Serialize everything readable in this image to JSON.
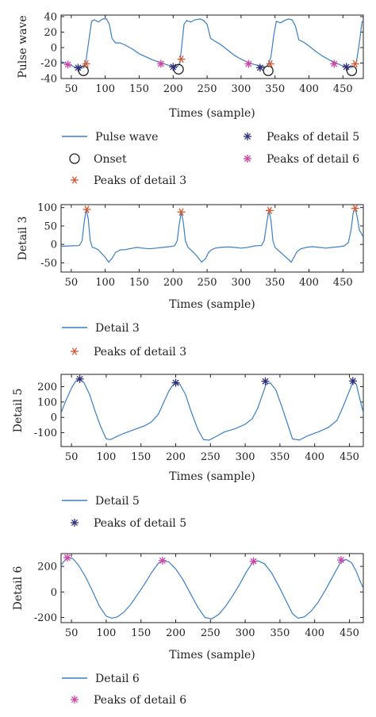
{
  "chart_data": [
    {
      "type": "line",
      "ylabel": "Pulse wave",
      "xlabel": "Times (sample)",
      "xlim": [
        35,
        480
      ],
      "ylim": [
        -40,
        42
      ],
      "xticks": [
        50,
        100,
        150,
        200,
        250,
        300,
        350,
        400,
        450
      ],
      "yticks": [
        -40,
        -20,
        0,
        20,
        40
      ],
      "series": [
        {
          "name": "Pulse wave",
          "kind": "line",
          "color": "#3b7fc4",
          "x": [
            35,
            47,
            55,
            62,
            68,
            72,
            76,
            80,
            84,
            90,
            96,
            102,
            106,
            110,
            115,
            122,
            130,
            140,
            150,
            160,
            170,
            180,
            190,
            198,
            205,
            210,
            213,
            216,
            220,
            226,
            232,
            240,
            245,
            250,
            255,
            262,
            270,
            280,
            290,
            300,
            310,
            320,
            330,
            336,
            340,
            344,
            348,
            352,
            358,
            364,
            370,
            375,
            380,
            385,
            392,
            400,
            410,
            420,
            430,
            440,
            448,
            456,
            462,
            466,
            470,
            474,
            478,
            480
          ],
          "y": [
            -18,
            -22,
            -25,
            -27,
            -26,
            -15,
            10,
            34,
            36,
            33,
            37,
            37,
            30,
            12,
            6,
            6,
            3,
            -2,
            -8,
            -12,
            -16,
            -19,
            -22,
            -24,
            -26,
            -20,
            5,
            30,
            35,
            33,
            36,
            37,
            35,
            30,
            12,
            8,
            4,
            -3,
            -10,
            -15,
            -19,
            -22,
            -24,
            -25,
            -22,
            -12,
            15,
            34,
            32,
            35,
            37,
            36,
            28,
            10,
            7,
            2,
            -5,
            -11,
            -16,
            -20,
            -23,
            -25,
            -26,
            -24,
            -18,
            5,
            33,
            35
          ]
        },
        {
          "name": "Onset",
          "kind": "marker",
          "marker": "circle",
          "color": "#222222",
          "x": [
            68,
            208,
            340,
            463
          ],
          "y": [
            -30,
            -28,
            -30,
            -30
          ]
        },
        {
          "name": "Peaks of detail 3",
          "kind": "marker",
          "marker": "star6",
          "color": "#d9542b",
          "x": [
            72,
            212,
            343,
            468
          ],
          "y": [
            -21,
            -15,
            -21,
            -21
          ]
        },
        {
          "name": "Peaks of detail 5",
          "kind": "marker",
          "marker": "star8",
          "color": "#2e2e7a",
          "x": [
            60,
            200,
            328,
            455
          ],
          "y": [
            -26,
            -25,
            -26,
            -25
          ]
        },
        {
          "name": "Peaks of detail 6",
          "kind": "marker",
          "marker": "star8",
          "color": "#cc44aa",
          "x": [
            45,
            182,
            311,
            437
          ],
          "y": [
            -22,
            -21,
            -21,
            -21
          ]
        }
      ],
      "legend": [
        {
          "text": "Pulse wave",
          "marker": "line",
          "color": "#3b7fc4"
        },
        {
          "text": "Peaks of detail 5",
          "marker": "star8",
          "color": "#2e2e7a"
        },
        {
          "text": "Onset",
          "marker": "circle",
          "color": "#222222"
        },
        {
          "text": "Peaks of detail 6",
          "marker": "star8",
          "color": "#cc44aa"
        },
        {
          "text": "Peaks of detail 3",
          "marker": "star6",
          "color": "#d9542b"
        }
      ]
    },
    {
      "type": "line",
      "ylabel": "Detail 3",
      "xlabel": "Times (sample)",
      "xlim": [
        35,
        480
      ],
      "ylim": [
        -75,
        108
      ],
      "xticks": [
        50,
        100,
        150,
        200,
        250,
        300,
        350,
        400,
        450
      ],
      "yticks": [
        -50,
        0,
        50,
        100
      ],
      "series": [
        {
          "name": "Detail 3",
          "kind": "line",
          "color": "#3b7fc4",
          "x": [
            35,
            50,
            62,
            66,
            69,
            72,
            75,
            78,
            81,
            85,
            90,
            95,
            100,
            105,
            110,
            115,
            122,
            130,
            138,
            146,
            155,
            165,
            175,
            185,
            195,
            202,
            206,
            209,
            212,
            215,
            218,
            222,
            230,
            236,
            242,
            248,
            252,
            256,
            262,
            270,
            280,
            290,
            300,
            310,
            320,
            330,
            334,
            338,
            341,
            344,
            347,
            350,
            356,
            362,
            368,
            374,
            378,
            382,
            388,
            396,
            405,
            415,
            425,
            435,
            445,
            452,
            458,
            462,
            465,
            468,
            471,
            474,
            477,
            480
          ],
          "y": [
            -5,
            -4,
            -3,
            10,
            60,
            95,
            70,
            10,
            -8,
            -10,
            -15,
            -25,
            -35,
            -48,
            -38,
            -22,
            -15,
            -14,
            -11,
            -8,
            -10,
            -12,
            -10,
            -8,
            -6,
            -4,
            10,
            55,
            88,
            60,
            10,
            -8,
            -22,
            -34,
            -48,
            -38,
            -22,
            -15,
            -10,
            -8,
            -7,
            -8,
            -10,
            -8,
            -4,
            -3,
            10,
            60,
            92,
            65,
            10,
            -8,
            -18,
            -28,
            -38,
            -48,
            -35,
            -20,
            -12,
            -8,
            -6,
            -8,
            -10,
            -8,
            -6,
            -4,
            5,
            40,
            85,
            98,
            75,
            40,
            30,
            20
          ]
        },
        {
          "name": "Peaks of detail 3",
          "kind": "marker",
          "marker": "star6",
          "color": "#d9542b",
          "x": [
            73,
            212,
            342,
            468
          ],
          "y": [
            95,
            88,
            92,
            98
          ]
        }
      ],
      "legend": [
        {
          "text": "Detail 3",
          "marker": "line",
          "color": "#3b7fc4"
        },
        {
          "text": "Peaks of detail 3",
          "marker": "star6",
          "color": "#d9542b"
        }
      ]
    },
    {
      "type": "line",
      "ylabel": "Detail 5",
      "xlabel": "Times (sample)",
      "xlim": [
        35,
        470
      ],
      "ylim": [
        -190,
        280
      ],
      "xticks": [
        50,
        100,
        150,
        200,
        250,
        300,
        350,
        400,
        450
      ],
      "yticks": [
        -100,
        0,
        100,
        200
      ],
      "series": [
        {
          "name": "Detail 5",
          "kind": "line",
          "color": "#3b7fc4",
          "x": [
            35,
            42,
            50,
            56,
            62,
            68,
            76,
            84,
            92,
            100,
            106,
            115,
            125,
            140,
            155,
            165,
            175,
            183,
            190,
            195,
            200,
            206,
            214,
            222,
            232,
            240,
            248,
            258,
            270,
            285,
            300,
            310,
            318,
            325,
            330,
            336,
            344,
            352,
            360,
            368,
            378,
            390,
            405,
            420,
            432,
            440,
            448,
            455,
            460,
            465,
            470
          ],
          "y": [
            30,
            110,
            190,
            235,
            250,
            225,
            150,
            40,
            -60,
            -140,
            -145,
            -125,
            -105,
            -80,
            -55,
            -30,
            20,
            100,
            170,
            205,
            225,
            215,
            150,
            40,
            -80,
            -145,
            -148,
            -125,
            -95,
            -75,
            -45,
            -10,
            60,
            150,
            215,
            225,
            180,
            80,
            -30,
            -140,
            -148,
            -120,
            -95,
            -65,
            -20,
            60,
            150,
            230,
            215,
            120,
            30
          ]
        },
        {
          "name": "Peaks of detail 5",
          "kind": "marker",
          "marker": "star8",
          "color": "#2e2e7a",
          "x": [
            62,
            200,
            329,
            455
          ],
          "y": [
            250,
            225,
            235,
            237
          ]
        }
      ],
      "legend": [
        {
          "text": "Detail 5",
          "marker": "line",
          "color": "#3b7fc4"
        },
        {
          "text": "Peaks of detail 5",
          "marker": "star8",
          "color": "#2e2e7a"
        }
      ]
    },
    {
      "type": "line",
      "ylabel": "Detail 6",
      "xlabel": "Times (sample)",
      "xlim": [
        35,
        470
      ],
      "ylim": [
        -240,
        300
      ],
      "xticks": [
        50,
        100,
        150,
        200,
        250,
        300,
        350,
        400,
        450
      ],
      "yticks": [
        -200,
        0,
        200
      ],
      "series": [
        {
          "name": "Detail 6",
          "kind": "line",
          "color": "#3b7fc4",
          "x": [
            35,
            40,
            45,
            52,
            60,
            70,
            80,
            90,
            100,
            108,
            116,
            125,
            135,
            145,
            155,
            165,
            175,
            182,
            190,
            200,
            210,
            220,
            232,
            242,
            252,
            262,
            272,
            282,
            292,
            302,
            310,
            318,
            328,
            338,
            348,
            358,
            368,
            376,
            385,
            395,
            405,
            415,
            425,
            437,
            445,
            453,
            460,
            465,
            470
          ],
          "y": [
            210,
            245,
            268,
            260,
            210,
            120,
            10,
            -110,
            -190,
            -205,
            -195,
            -160,
            -100,
            -20,
            60,
            150,
            225,
            245,
            235,
            180,
            100,
            0,
            -120,
            -200,
            -210,
            -175,
            -110,
            -30,
            60,
            160,
            225,
            245,
            220,
            150,
            50,
            -60,
            -170,
            -205,
            -195,
            -150,
            -80,
            10,
            110,
            230,
            255,
            230,
            160,
            90,
            30
          ]
        },
        {
          "name": "Peaks of detail 6",
          "kind": "marker",
          "marker": "star8",
          "color": "#cc44aa",
          "x": [
            44,
            181,
            312,
            438
          ],
          "y": [
            268,
            245,
            240,
            250
          ]
        }
      ],
      "legend": [
        {
          "text": "Detail 6",
          "marker": "line",
          "color": "#3b7fc4"
        },
        {
          "text": "Peaks of detail 6",
          "marker": "star8",
          "color": "#cc44aa"
        }
      ]
    }
  ]
}
